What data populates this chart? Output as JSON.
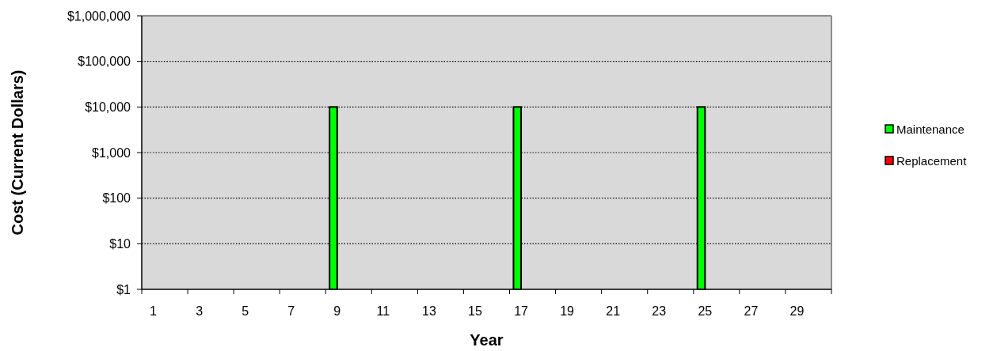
{
  "chart_data": {
    "type": "bar",
    "xlabel": "Year",
    "ylabel": "Cost (Current Dollars)",
    "series": [
      {
        "name": "Maintenance",
        "color": "#00ff00",
        "x": [
          9,
          17,
          25
        ],
        "values": [
          10000,
          10000,
          10000
        ]
      },
      {
        "name": "Replacement",
        "color": "#ff0000"
      }
    ],
    "xlim": [
      0.5,
      30.5
    ],
    "xticks": [
      {
        "value": 0.5,
        "label": null
      },
      1,
      {
        "value": 2.5,
        "label": null
      },
      3,
      {
        "value": 4.5,
        "label": null
      },
      5,
      {
        "value": 6.5,
        "label": null
      },
      7,
      {
        "value": 8.5,
        "label": null
      },
      9,
      {
        "value": 10.5,
        "label": null
      },
      11,
      {
        "value": 12.5,
        "label": null
      },
      13,
      {
        "value": 14.5,
        "label": null
      },
      15,
      {
        "value": 16.5,
        "label": null
      },
      17,
      {
        "value": 18.5,
        "label": null
      },
      19,
      {
        "value": 20.5,
        "label": null
      },
      21,
      {
        "value": 22.5,
        "label": null
      },
      23,
      {
        "value": 24.5,
        "label": null
      },
      25,
      {
        "value": 26.5,
        "label": null
      },
      27,
      {
        "value": 28.5,
        "label": null
      },
      29,
      {
        "value": 30.5,
        "label": null
      }
    ],
    "log": true,
    "ylim": [
      1,
      1000000
    ],
    "yticks": [
      {
        "value": 1,
        "label": "$1"
      },
      {
        "value": 10,
        "label": "$10"
      },
      {
        "value": 100,
        "label": "$100"
      },
      {
        "value": 1000,
        "label": "$1,000"
      },
      {
        "value": 10000,
        "label": "$10,000"
      },
      {
        "value": 100000,
        "label": "$100,000"
      },
      {
        "value": 1000000,
        "label": "$1,000,000"
      }
    ],
    "grid": "y",
    "legend": "right"
  }
}
